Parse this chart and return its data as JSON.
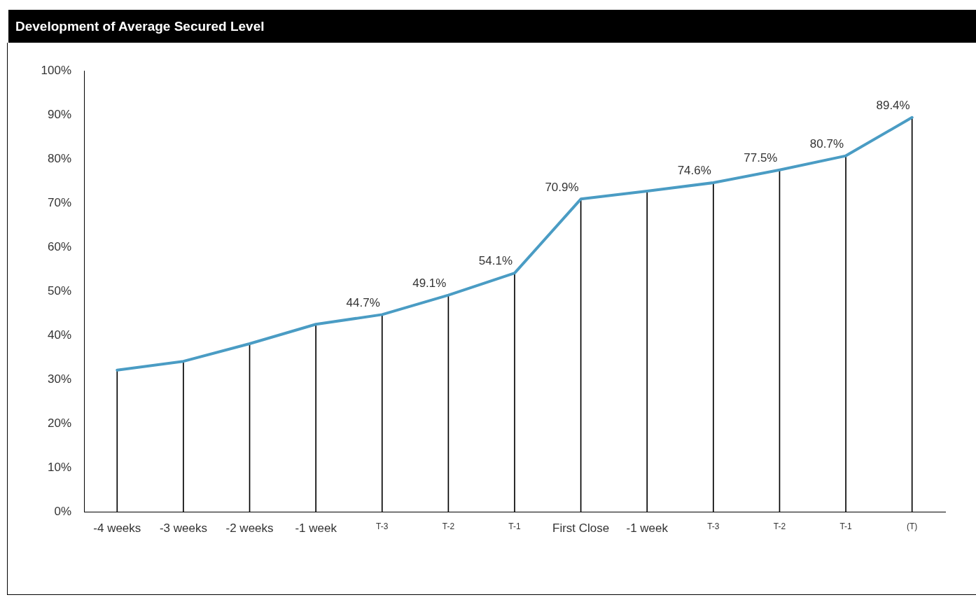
{
  "chart_data": {
    "type": "line",
    "title": "Development of Average Secured Level",
    "categories": [
      "-4 weeks",
      "-3 weeks",
      "-2 weeks",
      "-1 week",
      "T-3",
      "T-2",
      "T-1",
      "First Close",
      "-1 week",
      "T-3",
      "T-2",
      "T-1",
      "(T)"
    ],
    "series": [
      {
        "type": "bar",
        "color": "#000000",
        "values": [
          32.1,
          34.1,
          38.1,
          42.5,
          44.7,
          49.1,
          54.1,
          70.9,
          72.7,
          74.6,
          77.5,
          80.7,
          89.4
        ]
      },
      {
        "color": "#4a9cc4",
        "values": [
          32.1,
          34.1,
          38.1,
          42.5,
          44.7,
          49.1,
          54.1,
          70.9,
          72.7,
          74.6,
          77.5,
          80.7,
          89.4
        ],
        "value_labels": [
          null,
          null,
          null,
          null,
          "44.7%",
          "49.1%",
          "54.1%",
          "70.9%",
          null,
          "74.6%",
          "77.5%",
          "80.7%",
          "89.4%"
        ]
      }
    ],
    "ylim": [
      0,
      100
    ],
    "yticks": [
      {
        "value": 0,
        "label": "0%"
      },
      {
        "value": 10,
        "label": "10%"
      },
      {
        "value": 20,
        "label": "20%"
      },
      {
        "value": 30,
        "label": "30%"
      },
      {
        "value": 40,
        "label": "40%"
      },
      {
        "value": 50,
        "label": "50%"
      },
      {
        "value": 60,
        "label": "60%"
      },
      {
        "value": 70,
        "label": "70%"
      },
      {
        "value": 80,
        "label": "80%"
      },
      {
        "value": 90,
        "label": "90%"
      },
      {
        "value": 100,
        "label": "100%"
      }
    ],
    "grid": false,
    "legend": false,
    "marker": "none",
    "line_style": "solid"
  }
}
